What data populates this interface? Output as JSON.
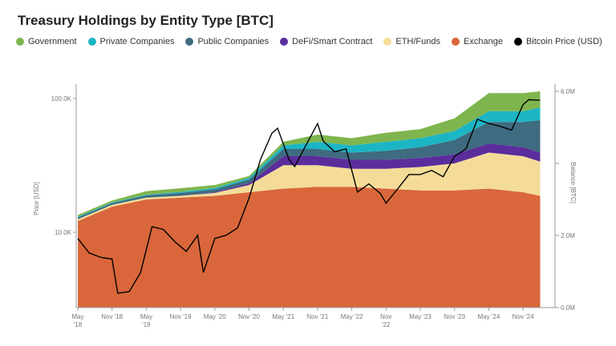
{
  "chart_data": {
    "type": "area",
    "title": "Treasury Holdings by Entity Type [BTC]",
    "ylabel_left": "Price [USD]",
    "ylabel_right": "Balance [BTC]",
    "left_axis": {
      "scale": "log",
      "ticks": [
        10000,
        100000
      ],
      "tick_labels": [
        "10.0K",
        "100.0K"
      ]
    },
    "right_axis": {
      "range": [
        0,
        6000000
      ],
      "ticks": [
        0,
        2000000,
        4000000,
        6000000
      ],
      "tick_labels": [
        "0.0M",
        "2.0M",
        "",
        "6.0M"
      ]
    },
    "x_ticks": [
      {
        "date": "2018-05",
        "label": [
          "May",
          "'18"
        ]
      },
      {
        "date": "2018-11",
        "label": [
          "Nov '18"
        ]
      },
      {
        "date": "2019-05",
        "label": [
          "May",
          "'19"
        ]
      },
      {
        "date": "2019-11",
        "label": [
          "Nov '19"
        ]
      },
      {
        "date": "2020-05",
        "label": [
          "May '20"
        ]
      },
      {
        "date": "2020-11",
        "label": [
          "Nov '20"
        ]
      },
      {
        "date": "2021-05",
        "label": [
          "May '21"
        ]
      },
      {
        "date": "2021-11",
        "label": [
          "Nov '21"
        ]
      },
      {
        "date": "2022-05",
        "label": [
          "May '22"
        ]
      },
      {
        "date": "2022-11",
        "label": [
          "Nov",
          "'22"
        ]
      },
      {
        "date": "2023-05",
        "label": [
          "May '23"
        ]
      },
      {
        "date": "2023-11",
        "label": [
          "Nov '23"
        ]
      },
      {
        "date": "2024-05",
        "label": [
          "May '24"
        ]
      },
      {
        "date": "2024-11",
        "label": [
          "Nov '24"
        ]
      }
    ],
    "dates": [
      "2018-05",
      "2018-11",
      "2019-05",
      "2019-11",
      "2020-05",
      "2020-11",
      "2021-05",
      "2021-11",
      "2022-05",
      "2022-11",
      "2023-05",
      "2023-11",
      "2024-05",
      "2024-11",
      "2025-02"
    ],
    "series": [
      {
        "name": "Exchange",
        "color": "#d9673b",
        "values": [
          2400000,
          2800000,
          3000000,
          3050000,
          3100000,
          3200000,
          3300000,
          3350000,
          3350000,
          3300000,
          3250000,
          3250000,
          3300000,
          3200000,
          3100000
        ]
      },
      {
        "name": "ETH/Funds",
        "color": "#f4dc98",
        "values": [
          50000,
          50000,
          50000,
          50000,
          80000,
          200000,
          650000,
          600000,
          500000,
          550000,
          650000,
          750000,
          1000000,
          1000000,
          950000
        ]
      },
      {
        "name": "DeFi/Smart Contract",
        "color": "#5b2d9c",
        "values": [
          0,
          0,
          0,
          0,
          20000,
          50000,
          250000,
          250000,
          250000,
          250000,
          250000,
          250000,
          250000,
          250000,
          250000
        ]
      },
      {
        "name": "Public Companies",
        "color": "#3f6b80",
        "values": [
          50000,
          50000,
          60000,
          80000,
          80000,
          100000,
          200000,
          200000,
          200000,
          250000,
          300000,
          400000,
          600000,
          700000,
          900000
        ]
      },
      {
        "name": "Private Companies",
        "color": "#1cb5c4",
        "values": [
          20000,
          20000,
          20000,
          30000,
          40000,
          50000,
          100000,
          200000,
          200000,
          250000,
          250000,
          250000,
          300000,
          300000,
          350000
        ]
      },
      {
        "name": "Government",
        "color": "#7fb54e",
        "values": [
          50000,
          50000,
          100000,
          100000,
          80000,
          50000,
          100000,
          200000,
          200000,
          250000,
          250000,
          350000,
          500000,
          500000,
          450000
        ]
      }
    ],
    "price": {
      "name": "Bitcoin Price (USD)",
      "color": "#000000",
      "dates": [
        "2018-05",
        "2018-07",
        "2018-09",
        "2018-11",
        "2018-12",
        "2019-02",
        "2019-04",
        "2019-06",
        "2019-08",
        "2019-10",
        "2019-12",
        "2020-02",
        "2020-03",
        "2020-05",
        "2020-07",
        "2020-09",
        "2020-11",
        "2020-12",
        "2021-01",
        "2021-03",
        "2021-04",
        "2021-06",
        "2021-07",
        "2021-09",
        "2021-11",
        "2021-12",
        "2022-02",
        "2022-04",
        "2022-06",
        "2022-08",
        "2022-10",
        "2022-11",
        "2023-01",
        "2023-03",
        "2023-05",
        "2023-07",
        "2023-09",
        "2023-11",
        "2024-01",
        "2024-03",
        "2024-05",
        "2024-07",
        "2024-09",
        "2024-11",
        "2024-12",
        "2025-02"
      ],
      "values": [
        9000,
        7000,
        6500,
        6300,
        3500,
        3600,
        5000,
        11000,
        10500,
        8500,
        7200,
        9500,
        5000,
        9000,
        9500,
        10800,
        18000,
        25000,
        35000,
        55000,
        60000,
        35000,
        31000,
        45000,
        65000,
        48000,
        40000,
        42000,
        20000,
        23000,
        19500,
        16500,
        21000,
        27000,
        27000,
        29000,
        26000,
        37000,
        42000,
        70000,
        65000,
        62000,
        58000,
        90000,
        98000,
        97000
      ]
    }
  },
  "legend": [
    "Government",
    "Private Companies",
    "Public Companies",
    "DeFi/Smart Contract",
    "ETH/Funds",
    "Exchange",
    "Bitcoin Price (USD)"
  ],
  "legend_colors": [
    "#7fb54e",
    "#1cb5c4",
    "#3f6b80",
    "#5b2d9c",
    "#f4dc98",
    "#d9673b",
    "#000000"
  ]
}
